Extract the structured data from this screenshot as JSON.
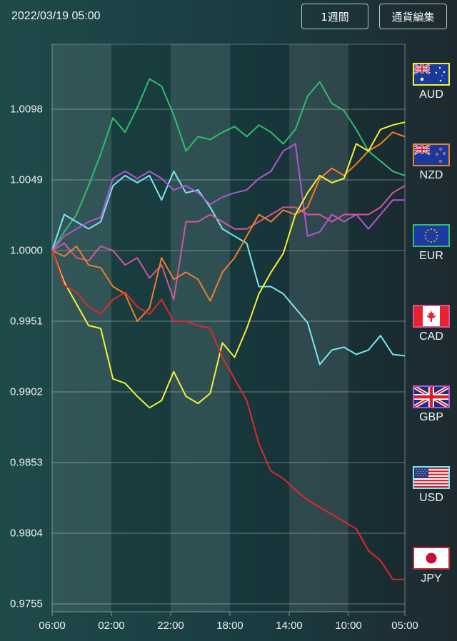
{
  "header": {
    "datetime": "2022/03/19 05:00",
    "period_button": "1週間",
    "edit_button": "通貨編集"
  },
  "legend": [
    {
      "code": "AUD",
      "icon": "australia-flag-icon",
      "color": "#f5f034"
    },
    {
      "code": "NZD",
      "icon": "new-zealand-flag-icon",
      "color": "#f07f2a"
    },
    {
      "code": "EUR",
      "icon": "eu-flag-icon",
      "color": "#2fbf6f"
    },
    {
      "code": "CAD",
      "icon": "canada-flag-icon",
      "color": "#d0579c"
    },
    {
      "code": "GBP",
      "icon": "uk-flag-icon",
      "color": "#b057d0"
    },
    {
      "code": "USD",
      "icon": "us-flag-icon",
      "color": "#7ae6f0"
    },
    {
      "code": "JPY",
      "icon": "japan-flag-icon",
      "color": "#e0282d"
    }
  ],
  "chart_data": {
    "type": "line",
    "title": "",
    "xlabel": "",
    "ylabel": "",
    "x_ticks": [
      "06:00",
      "02:00",
      "22:00",
      "18:00",
      "14:00",
      "10:00",
      "05:00"
    ],
    "y_ticks": [
      "1.0098",
      "1.0049",
      "1.0000",
      "0.9951",
      "0.9902",
      "0.9853",
      "0.9804",
      "0.9755"
    ],
    "ylim": [
      0.9755,
      1.0145
    ],
    "grid": true,
    "legend_position": "right",
    "sample_count": 30,
    "series": [
      {
        "name": "EUR",
        "color": "#2fbf6f",
        "values": [
          1.0,
          1.0013,
          1.0025,
          1.0045,
          1.0067,
          1.0092,
          1.0082,
          1.0099,
          1.0119,
          1.0114,
          1.0094,
          1.0069,
          1.0079,
          1.0077,
          1.0082,
          1.0086,
          1.0079,
          1.0087,
          1.0082,
          1.0074,
          1.0084,
          1.0107,
          1.0117,
          1.0102,
          1.0097,
          1.0084,
          1.0069,
          1.0062,
          1.0055,
          1.0052
        ]
      },
      {
        "name": "USD",
        "color": "#7ae6f0",
        "values": [
          1.0,
          1.0025,
          1.002,
          1.0015,
          1.002,
          1.0045,
          1.0052,
          1.0047,
          1.0052,
          1.0035,
          1.0055,
          1.004,
          1.0042,
          1.003,
          1.0015,
          1.001,
          1.0005,
          0.9975,
          0.9975,
          0.997,
          0.996,
          0.995,
          0.9921,
          0.9931,
          0.9933,
          0.9928,
          0.9931,
          0.9941,
          0.9928,
          0.9927
        ]
      },
      {
        "name": "GBP",
        "color": "#b057d0",
        "values": [
          1.0,
          1.001,
          1.0015,
          1.002,
          1.0023,
          1.005,
          1.0055,
          1.005,
          1.0055,
          1.005,
          1.0042,
          1.0045,
          1.004,
          1.0032,
          1.0037,
          1.004,
          1.0042,
          1.005,
          1.0055,
          1.0069,
          1.0074,
          1.001,
          1.0013,
          1.0025,
          1.002,
          1.0025,
          1.0015,
          1.0025,
          1.0035,
          1.0035
        ]
      },
      {
        "name": "CAD",
        "color": "#d0579c",
        "values": [
          1.0,
          1.0005,
          0.9995,
          0.9993,
          1.0003,
          1.0,
          0.999,
          0.9995,
          0.9981,
          0.999,
          0.9966,
          1.002,
          1.002,
          1.0025,
          1.002,
          1.0015,
          1.0015,
          1.002,
          1.0025,
          1.003,
          1.003,
          1.0025,
          1.0025,
          1.002,
          1.0025,
          1.0025,
          1.0025,
          1.003,
          1.004,
          1.0045
        ]
      },
      {
        "name": "NZD",
        "color": "#f07f2a",
        "values": [
          1.0,
          0.9996,
          1.0003,
          0.999,
          0.9988,
          0.9975,
          0.997,
          0.9951,
          0.996,
          0.9995,
          0.998,
          0.9985,
          0.998,
          0.9965,
          0.9985,
          0.9995,
          1.001,
          1.0025,
          1.002,
          1.0028,
          1.0025,
          1.003,
          1.005,
          1.0057,
          1.0052,
          1.006,
          1.0069,
          1.0074,
          1.0082,
          1.0079
        ]
      },
      {
        "name": "AUD",
        "color": "#f5f034",
        "values": [
          1.0,
          0.9978,
          0.9963,
          0.9948,
          0.9946,
          0.9911,
          0.9908,
          0.9899,
          0.9891,
          0.9896,
          0.9916,
          0.9899,
          0.9894,
          0.9901,
          0.9936,
          0.9926,
          0.9946,
          0.997,
          0.9985,
          0.9998,
          1.0025,
          1.004,
          1.0052,
          1.0047,
          1.005,
          1.0074,
          1.0069,
          1.0084,
          1.0087,
          1.0089
        ]
      },
      {
        "name": "JPY",
        "color": "#e0282d",
        "values": [
          1.0,
          0.9976,
          0.9971,
          0.9961,
          0.9956,
          0.9966,
          0.9971,
          0.9961,
          0.9956,
          0.9966,
          0.9951,
          0.9951,
          0.9948,
          0.9946,
          0.9926,
          0.9911,
          0.9896,
          0.9866,
          0.9847,
          0.9842,
          0.9834,
          0.9827,
          0.9822,
          0.9817,
          0.9812,
          0.9807,
          0.9792,
          0.9785,
          0.9772,
          0.9772
        ]
      }
    ]
  }
}
